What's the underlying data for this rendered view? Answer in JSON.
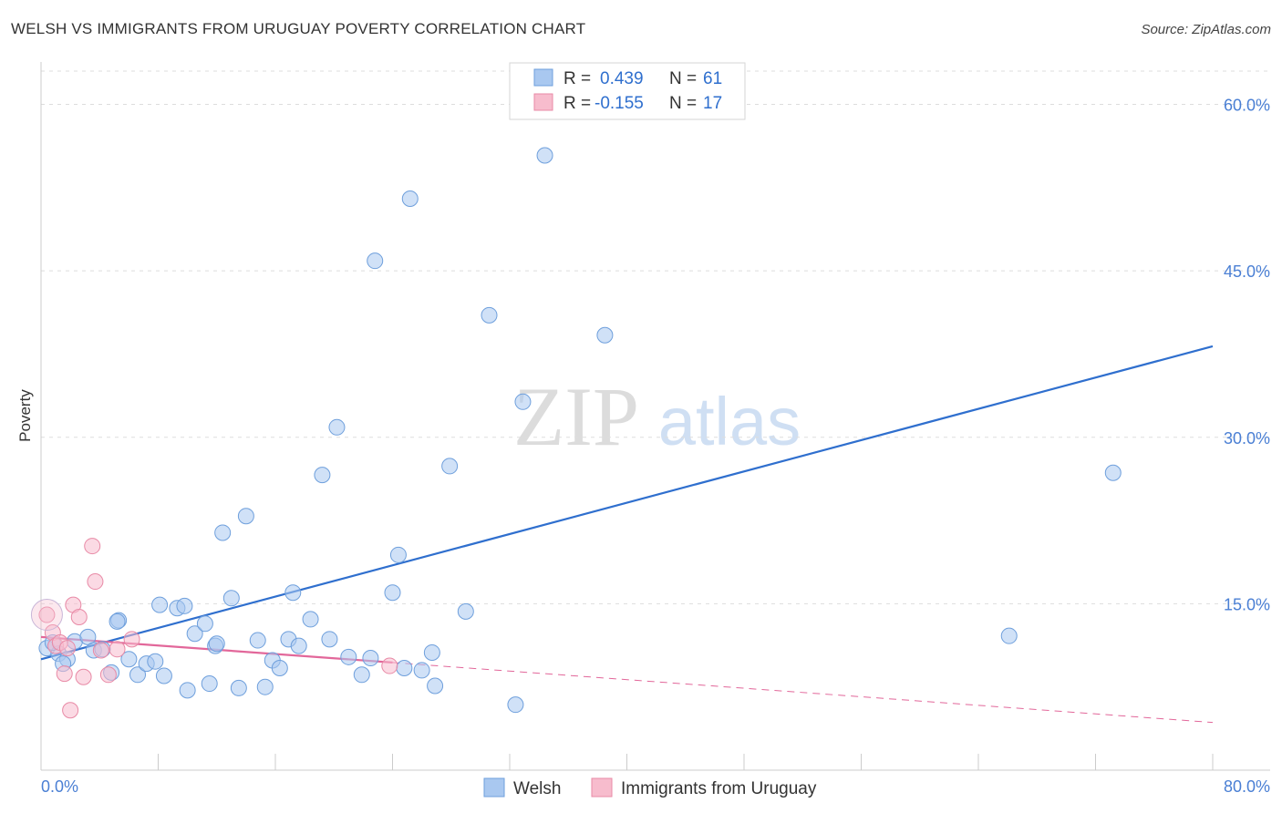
{
  "header": {
    "title": "WELSH VS IMMIGRANTS FROM URUGUAY POVERTY CORRELATION CHART",
    "source": "Source: ZipAtlas.com"
  },
  "stats_box": {
    "rows": [
      {
        "r_label": "R =",
        "r_value": "0.439",
        "n_label": "N =",
        "n_value": "61"
      },
      {
        "r_label": "R =",
        "r_value": "-0.155",
        "n_label": "N =",
        "n_value": "17"
      }
    ]
  },
  "watermark": {
    "zip": "ZIP",
    "atlas": "atlas"
  },
  "colors": {
    "welsh_fill": "#a9c8f0",
    "welsh_stroke": "#6e9fdc",
    "welsh_line": "#2f6fce",
    "uruguay_fill": "#f7bccd",
    "uruguay_stroke": "#e88aa6",
    "uruguay_line": "#e2679a",
    "tick_label": "#4a7fd4",
    "grid": "#dddddd"
  },
  "chart_data": {
    "type": "scatter",
    "title": "WELSH VS IMMIGRANTS FROM URUGUAY POVERTY CORRELATION CHART",
    "xlabel": "",
    "ylabel": "Poverty",
    "xlim": [
      0,
      80
    ],
    "ylim": [
      0,
      63
    ],
    "x_tick_labels": [
      "0.0%",
      "80.0%"
    ],
    "y_ticks": [
      15,
      30,
      45,
      60
    ],
    "y_tick_labels": [
      "15.0%",
      "30.0%",
      "45.0%",
      "60.0%"
    ],
    "legend": [
      "Welsh",
      "Immigrants from Uruguay"
    ],
    "series": [
      {
        "name": "Welsh",
        "points": [
          [
            0.4,
            11.0
          ],
          [
            1.2,
            10.5
          ],
          [
            1.8,
            10.0
          ],
          [
            2.3,
            11.6
          ],
          [
            3.2,
            12.0
          ],
          [
            3.6,
            10.8
          ],
          [
            4.2,
            10.9
          ],
          [
            4.8,
            8.8
          ],
          [
            5.3,
            13.5
          ],
          [
            6.0,
            10.0
          ],
          [
            6.6,
            8.6
          ],
          [
            7.2,
            9.6
          ],
          [
            7.8,
            9.8
          ],
          [
            8.4,
            8.5
          ],
          [
            9.3,
            14.6
          ],
          [
            9.8,
            14.8
          ],
          [
            10.0,
            7.2
          ],
          [
            10.5,
            12.3
          ],
          [
            11.2,
            13.2
          ],
          [
            11.5,
            7.8
          ],
          [
            11.9,
            11.2
          ],
          [
            12.4,
            21.4
          ],
          [
            13.0,
            15.5
          ],
          [
            13.5,
            7.4
          ],
          [
            14.0,
            22.9
          ],
          [
            14.8,
            11.7
          ],
          [
            15.8,
            9.9
          ],
          [
            16.3,
            9.2
          ],
          [
            16.9,
            11.8
          ],
          [
            17.2,
            16.0
          ],
          [
            17.6,
            11.2
          ],
          [
            18.4,
            13.6
          ],
          [
            19.2,
            26.6
          ],
          [
            19.7,
            11.8
          ],
          [
            20.2,
            30.9
          ],
          [
            21.9,
            8.6
          ],
          [
            22.5,
            10.1
          ],
          [
            22.8,
            45.9
          ],
          [
            24.0,
            16.0
          ],
          [
            24.4,
            19.4
          ],
          [
            24.8,
            9.2
          ],
          [
            25.2,
            51.5
          ],
          [
            26.7,
            10.6
          ],
          [
            26.9,
            7.6
          ],
          [
            27.9,
            27.4
          ],
          [
            29.0,
            14.3
          ],
          [
            30.6,
            41.0
          ],
          [
            32.4,
            5.9
          ],
          [
            32.9,
            33.2
          ],
          [
            34.4,
            55.4
          ],
          [
            38.5,
            39.2
          ],
          [
            66.1,
            12.1
          ],
          [
            73.2,
            26.8
          ],
          [
            0.8,
            11.5
          ],
          [
            1.5,
            9.6
          ],
          [
            5.2,
            13.4
          ],
          [
            8.1,
            14.9
          ],
          [
            12.0,
            11.4
          ],
          [
            15.3,
            7.5
          ],
          [
            21.0,
            10.2
          ],
          [
            26.0,
            9.0
          ]
        ]
      },
      {
        "name": "Immigrants from Uruguay",
        "points": [
          [
            0.4,
            14.0
          ],
          [
            0.8,
            12.4
          ],
          [
            1.0,
            11.2
          ],
          [
            1.3,
            11.5
          ],
          [
            1.6,
            8.7
          ],
          [
            1.8,
            11.0
          ],
          [
            2.2,
            14.9
          ],
          [
            2.6,
            13.8
          ],
          [
            2.9,
            8.4
          ],
          [
            3.5,
            20.2
          ],
          [
            3.7,
            17.0
          ],
          [
            4.1,
            10.8
          ],
          [
            5.2,
            10.9
          ],
          [
            6.2,
            11.8
          ],
          [
            4.6,
            8.6
          ],
          [
            2.0,
            5.4
          ],
          [
            23.8,
            9.4
          ]
        ]
      }
    ],
    "trend_lines": [
      {
        "series": "Welsh",
        "x": [
          0,
          80
        ],
        "y": [
          10.0,
          38.2
        ],
        "style": "solid"
      },
      {
        "series": "Immigrants from Uruguay",
        "x": [
          0,
          24
        ],
        "y": [
          12.0,
          9.7
        ],
        "style": "solid"
      },
      {
        "series": "Immigrants from Uruguay",
        "x": [
          24,
          80
        ],
        "y": [
          9.7,
          4.3
        ],
        "style": "dashed"
      }
    ]
  }
}
